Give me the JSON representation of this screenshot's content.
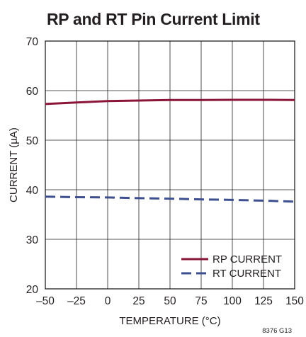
{
  "figure_id": "8376 G13",
  "chart_data": {
    "type": "line",
    "title": "RP and RT Pin Current Limit",
    "xlabel": "TEMPERATURE (°C)",
    "ylabel": "CURRENT (µA)",
    "xlim": [
      -50,
      150
    ],
    "ylim": [
      20,
      70
    ],
    "xticks": [
      -50,
      -25,
      0,
      25,
      50,
      75,
      100,
      125,
      150
    ],
    "xtick_labels": [
      "–50",
      "–25",
      "0",
      "25",
      "50",
      "75",
      "100",
      "125",
      "150"
    ],
    "yticks": [
      20,
      30,
      40,
      50,
      60,
      70
    ],
    "ytick_labels": [
      "20",
      "30",
      "40",
      "50",
      "60",
      "70"
    ],
    "grid": true,
    "legend_position": "bottom-right",
    "series": [
      {
        "name": "RP CURRENT",
        "color": "#8b1538",
        "style": "solid",
        "x": [
          -50,
          -25,
          0,
          25,
          50,
          75,
          100,
          125,
          150
        ],
        "y": [
          57.3,
          57.6,
          57.9,
          58.0,
          58.1,
          58.1,
          58.15,
          58.15,
          58.1
        ]
      },
      {
        "name": "RT CURRENT",
        "color": "#3d4f8f",
        "style": "dashed",
        "x": [
          -50,
          -25,
          0,
          25,
          50,
          75,
          100,
          125,
          150
        ],
        "y": [
          38.6,
          38.5,
          38.45,
          38.3,
          38.2,
          38.05,
          37.95,
          37.8,
          37.6
        ]
      }
    ]
  }
}
